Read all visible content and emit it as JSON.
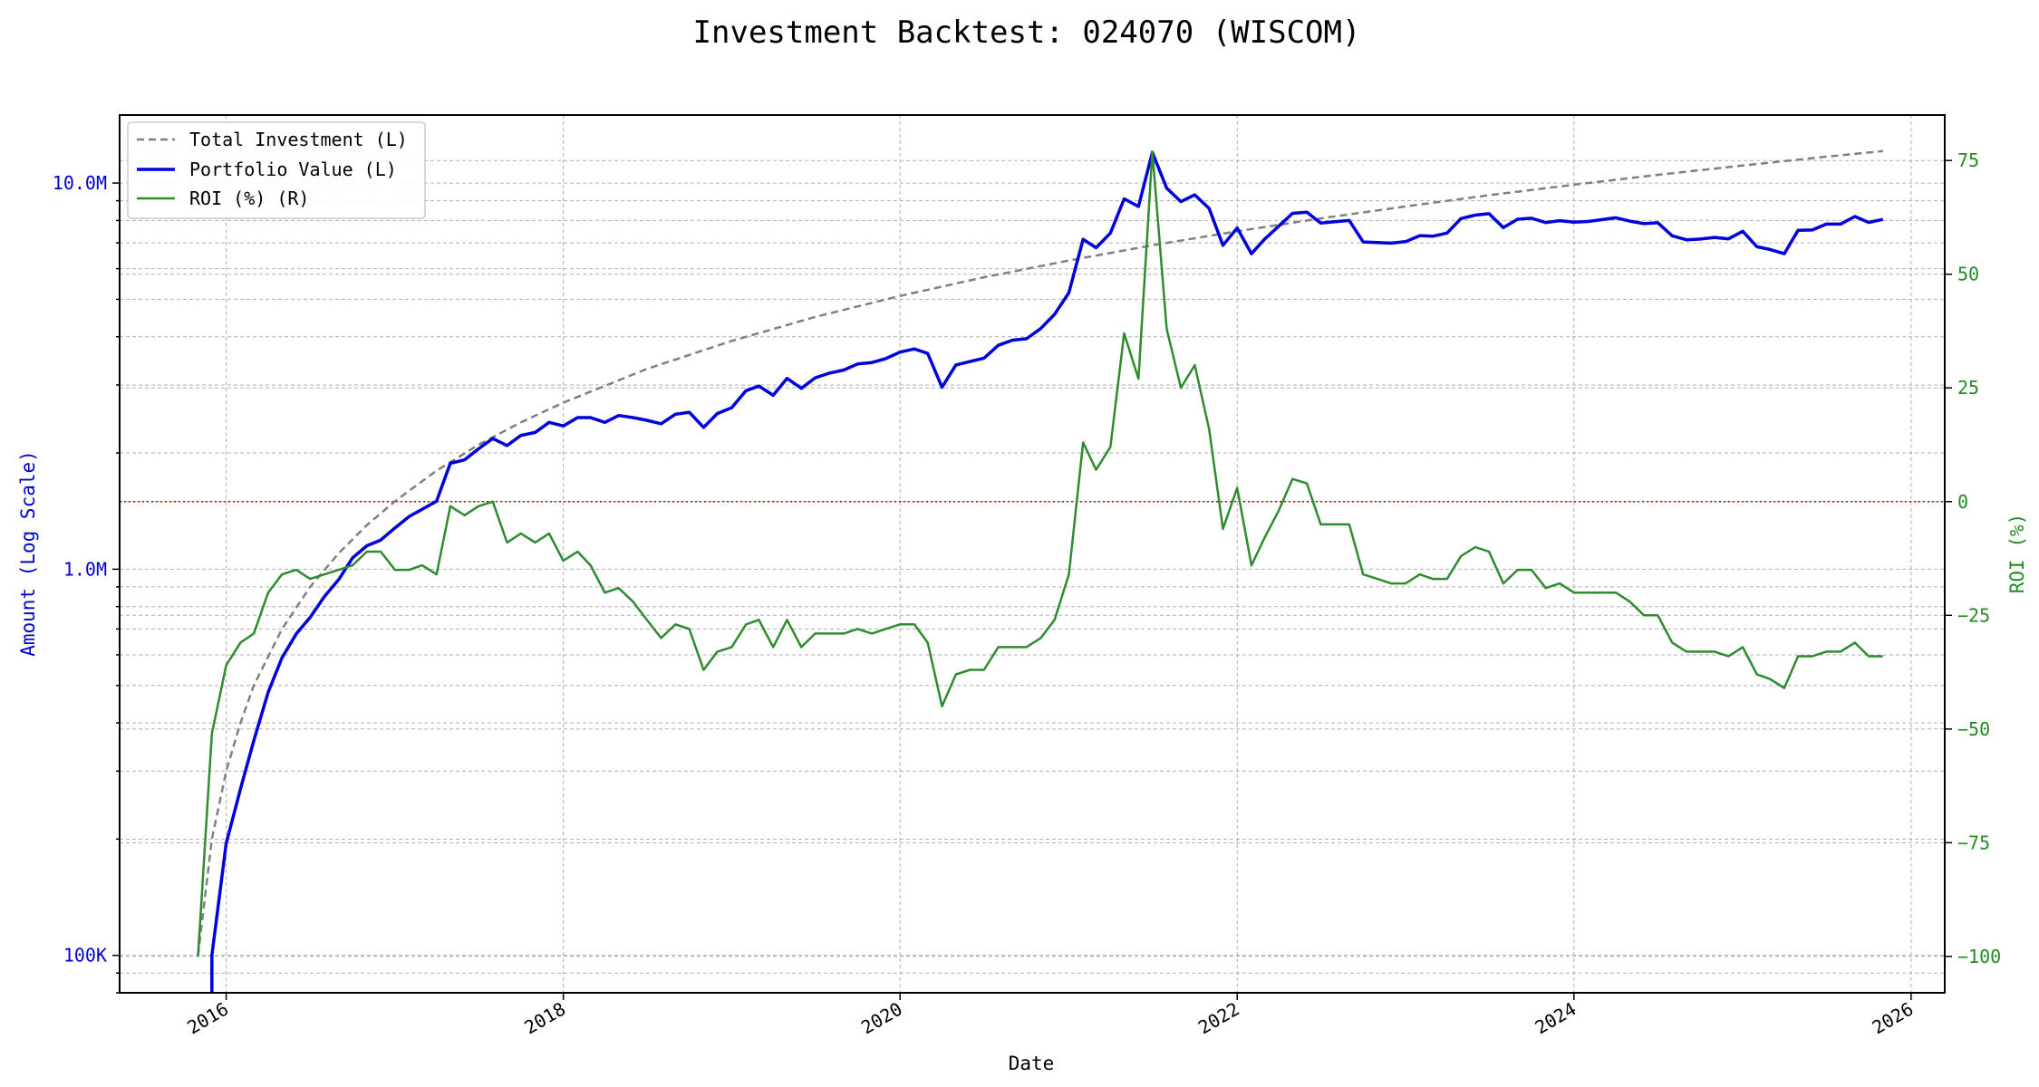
{
  "chart_data": {
    "type": "line",
    "title": "Investment Backtest: 024070 (WISCOM)",
    "xlabel": "Date",
    "ylabel_left": "Amount (Log Scale)",
    "ylabel_right": "ROI (%)",
    "y_scale_left": "log",
    "ylim_left": [
      80000,
      15000000
    ],
    "ylim_right": [
      -108,
      85
    ],
    "xlim": [
      "2015-05-15",
      "2026-03-15"
    ],
    "grid": true,
    "legend_position": "top-left",
    "x_ticks": [
      {
        "date": "2016-01-01",
        "label": "2016"
      },
      {
        "date": "2018-01-01",
        "label": "2018"
      },
      {
        "date": "2020-01-01",
        "label": "2020"
      },
      {
        "date": "2022-01-01",
        "label": "2022"
      },
      {
        "date": "2024-01-01",
        "label": "2024"
      },
      {
        "date": "2026-01-01",
        "label": "2026"
      }
    ],
    "y_ticks_left": [
      {
        "value": 100000,
        "label": "100K"
      },
      {
        "value": 1000000,
        "label": "1.0M"
      },
      {
        "value": 10000000,
        "label": "10.0M"
      }
    ],
    "y_ticks_right": [
      {
        "value": 75,
        "label": "75"
      },
      {
        "value": 50,
        "label": "50"
      },
      {
        "value": 25,
        "label": "25"
      },
      {
        "value": 0,
        "label": "0"
      },
      {
        "value": -25,
        "label": "−25"
      },
      {
        "value": -50,
        "label": "−50"
      },
      {
        "value": -75,
        "label": "−75"
      },
      {
        "value": -100,
        "label": "−100"
      }
    ],
    "zero_line": {
      "value": 0,
      "axis": "right",
      "color": "#cc0000",
      "style": "dotted"
    },
    "series": [
      {
        "name": "Total Investment (L)",
        "axis": "left",
        "color": "#808080",
        "style": "dashed",
        "x": [
          "2015-11-01",
          "2015-12-01",
          "2016-01-01",
          "2016-02-01",
          "2016-03-01",
          "2016-05-01",
          "2016-07-01",
          "2016-09-01",
          "2016-11-01",
          "2017-01-01",
          "2017-04-01",
          "2017-07-01",
          "2017-10-01",
          "2018-01-01",
          "2018-07-01",
          "2019-01-01",
          "2019-07-01",
          "2020-01-01",
          "2020-07-01",
          "2021-01-01",
          "2021-07-01",
          "2022-01-01",
          "2022-07-01",
          "2023-01-01",
          "2023-07-01",
          "2024-01-01",
          "2024-07-01",
          "2025-01-01",
          "2025-07-01",
          "2025-11-01"
        ],
        "values": [
          100000,
          200000,
          300000,
          400000,
          500000,
          700000,
          900000,
          1100000,
          1300000,
          1500000,
          1800000,
          2100000,
          2400000,
          2700000,
          3300000,
          3900000,
          4500000,
          5100000,
          5700000,
          6300000,
          6900000,
          7500000,
          8100000,
          8700000,
          9300000,
          9900000,
          10500000,
          11100000,
          11700000,
          12100000
        ]
      },
      {
        "name": "Portfolio Value (L)",
        "axis": "left",
        "color": "#0000dd",
        "style": "solid",
        "x": [
          "2015-12-01",
          "2015-12-01",
          "2016-01-01",
          "2016-02-01",
          "2016-03-01",
          "2016-04-01",
          "2016-05-01",
          "2016-06-01",
          "2016-07-01",
          "2016-08-01",
          "2016-09-01",
          "2016-10-01",
          "2016-11-01",
          "2016-12-01",
          "2017-01-01",
          "2017-02-01",
          "2017-03-01",
          "2017-04-01",
          "2017-05-01",
          "2017-06-01",
          "2017-07-01",
          "2017-08-01",
          "2017-09-01",
          "2017-10-01",
          "2017-11-01",
          "2017-12-01",
          "2018-01-01",
          "2018-02-01",
          "2018-03-01",
          "2018-04-01",
          "2018-05-01",
          "2018-06-01",
          "2018-07-01",
          "2018-08-01",
          "2018-09-01",
          "2018-10-01",
          "2018-11-01",
          "2018-12-01",
          "2019-01-01",
          "2019-02-01",
          "2019-03-01",
          "2019-04-01",
          "2019-05-01",
          "2019-06-01",
          "2019-07-01",
          "2019-08-01",
          "2019-09-01",
          "2019-10-01",
          "2019-11-01",
          "2019-12-01",
          "2020-01-01",
          "2020-02-01",
          "2020-03-01",
          "2020-04-01",
          "2020-05-01",
          "2020-06-01",
          "2020-07-01",
          "2020-08-01",
          "2020-09-01",
          "2020-10-01",
          "2020-11-01",
          "2020-12-01",
          "2021-01-01",
          "2021-02-01",
          "2021-03-01",
          "2021-04-01",
          "2021-05-01",
          "2021-06-01",
          "2021-07-01",
          "2021-08-01",
          "2021-09-01",
          "2021-10-01",
          "2021-11-01",
          "2021-12-01",
          "2022-01-01",
          "2022-02-01",
          "2022-03-01",
          "2022-04-01",
          "2022-05-01",
          "2022-06-01",
          "2022-07-01",
          "2022-08-01",
          "2022-09-01",
          "2022-10-01",
          "2022-11-01",
          "2022-12-01",
          "2023-01-01",
          "2023-02-01",
          "2023-03-01",
          "2023-04-01",
          "2023-05-01",
          "2023-06-01",
          "2023-07-01",
          "2023-08-01",
          "2023-09-01",
          "2023-10-01",
          "2023-11-01",
          "2023-12-01",
          "2024-01-01",
          "2024-02-01",
          "2024-03-01",
          "2024-04-01",
          "2024-05-01",
          "2024-06-01",
          "2024-07-01",
          "2024-08-01",
          "2024-09-01",
          "2024-10-01",
          "2024-11-01",
          "2024-12-01",
          "2025-01-01",
          "2025-02-01",
          "2025-03-01",
          "2025-04-01",
          "2025-05-01",
          "2025-06-01",
          "2025-07-01",
          "2025-08-01",
          "2025-09-01",
          "2025-10-01",
          "2025-11-01"
        ],
        "values": [
          80000,
          100000,
          195000,
          270000,
          360000,
          480000,
          590000,
          680000,
          750000,
          850000,
          940000,
          1070000,
          1150000,
          1190000,
          1280000,
          1370000,
          1430000,
          1500000,
          1880000,
          1920000,
          2050000,
          2180000,
          2090000,
          2220000,
          2260000,
          2400000,
          2350000,
          2470000,
          2470000,
          2400000,
          2500000,
          2470000,
          2430000,
          2380000,
          2520000,
          2550000,
          2330000,
          2530000,
          2620000,
          2900000,
          2980000,
          2820000,
          3120000,
          2940000,
          3130000,
          3220000,
          3280000,
          3400000,
          3430000,
          3510000,
          3650000,
          3720000,
          3620000,
          2960000,
          3380000,
          3450000,
          3520000,
          3800000,
          3920000,
          3950000,
          4200000,
          4570000,
          5200000,
          7150000,
          6800000,
          7420000,
          9100000,
          8700000,
          12000000,
          9700000,
          8950000,
          9320000,
          8600000,
          6900000,
          7650000,
          6560000,
          7150000,
          7730000,
          8350000,
          8400000,
          7880000,
          7940000,
          8000000,
          7040000,
          7010000,
          6990000,
          7050000,
          7310000,
          7280000,
          7420000,
          8090000,
          8260000,
          8330000,
          7670000,
          8060000,
          8110000,
          7900000,
          7990000,
          7920000,
          7950000,
          8040000,
          8130000,
          7970000,
          7850000,
          7890000,
          7300000,
          7130000,
          7160000,
          7230000,
          7170000,
          7500000,
          6840000,
          6730000,
          6560000,
          7540000,
          7560000,
          7830000,
          7830000,
          8190000,
          7910000,
          8050000
        ]
      },
      {
        "name": "ROI (%) (R)",
        "axis": "right",
        "color": "#2e8b2e",
        "style": "solid",
        "x": [
          "2015-11-01",
          "2015-12-01",
          "2016-01-01",
          "2016-02-01",
          "2016-03-01",
          "2016-04-01",
          "2016-05-01",
          "2016-06-01",
          "2016-07-01",
          "2016-08-01",
          "2016-09-01",
          "2016-10-01",
          "2016-11-01",
          "2016-12-01",
          "2017-01-01",
          "2017-02-01",
          "2017-03-01",
          "2017-04-01",
          "2017-05-01",
          "2017-06-01",
          "2017-07-01",
          "2017-08-01",
          "2017-09-01",
          "2017-10-01",
          "2017-11-01",
          "2017-12-01",
          "2018-01-01",
          "2018-02-01",
          "2018-03-01",
          "2018-04-01",
          "2018-05-01",
          "2018-06-01",
          "2018-07-01",
          "2018-08-01",
          "2018-09-01",
          "2018-10-01",
          "2018-11-01",
          "2018-12-01",
          "2019-01-01",
          "2019-02-01",
          "2019-03-01",
          "2019-04-01",
          "2019-05-01",
          "2019-06-01",
          "2019-07-01",
          "2019-08-01",
          "2019-09-01",
          "2019-10-01",
          "2019-11-01",
          "2019-12-01",
          "2020-01-01",
          "2020-02-01",
          "2020-03-01",
          "2020-04-01",
          "2020-05-01",
          "2020-06-01",
          "2020-07-01",
          "2020-08-01",
          "2020-09-01",
          "2020-10-01",
          "2020-11-01",
          "2020-12-01",
          "2021-01-01",
          "2021-02-01",
          "2021-03-01",
          "2021-04-01",
          "2021-05-01",
          "2021-06-01",
          "2021-07-01",
          "2021-08-01",
          "2021-09-01",
          "2021-10-01",
          "2021-11-01",
          "2021-12-01",
          "2022-01-01",
          "2022-02-01",
          "2022-03-01",
          "2022-04-01",
          "2022-05-01",
          "2022-06-01",
          "2022-07-01",
          "2022-08-01",
          "2022-09-01",
          "2022-10-01",
          "2022-11-01",
          "2022-12-01",
          "2023-01-01",
          "2023-02-01",
          "2023-03-01",
          "2023-04-01",
          "2023-05-01",
          "2023-06-01",
          "2023-07-01",
          "2023-08-01",
          "2023-09-01",
          "2023-10-01",
          "2023-11-01",
          "2023-12-01",
          "2024-01-01",
          "2024-02-01",
          "2024-03-01",
          "2024-04-01",
          "2024-05-01",
          "2024-06-01",
          "2024-07-01",
          "2024-08-01",
          "2024-09-01",
          "2024-10-01",
          "2024-11-01",
          "2024-12-01",
          "2025-01-01",
          "2025-02-01",
          "2025-03-01",
          "2025-04-01",
          "2025-05-01",
          "2025-06-01",
          "2025-07-01",
          "2025-08-01",
          "2025-09-01",
          "2025-10-01",
          "2025-11-01"
        ],
        "values": [
          -100,
          -51,
          -36,
          -31,
          -29,
          -20,
          -16,
          -15,
          -17,
          -16,
          -15,
          -14,
          -11,
          -11,
          -15,
          -15,
          -14,
          -16,
          -1,
          -3,
          -1,
          0,
          -9,
          -7,
          -9,
          -7,
          -13,
          -11,
          -14,
          -20,
          -19,
          -22,
          -26,
          -30,
          -27,
          -28,
          -37,
          -33,
          -32,
          -27,
          -26,
          -32,
          -26,
          -32,
          -29,
          -29,
          -29,
          -28,
          -29,
          -28,
          -27,
          -27,
          -31,
          -45,
          -38,
          -37,
          -37,
          -32,
          -32,
          -32,
          -30,
          -26,
          -16,
          13,
          7,
          12,
          37,
          27,
          77,
          38,
          25,
          30,
          16,
          -6,
          3,
          -14,
          -8,
          -2,
          5,
          4,
          -5,
          -5,
          -5,
          -16,
          -17,
          -18,
          -18,
          -16,
          -17,
          -17,
          -12,
          -10,
          -11,
          -18,
          -15,
          -15,
          -19,
          -18,
          -20,
          -20,
          -20,
          -20,
          -22,
          -25,
          -25,
          -31,
          -33,
          -33,
          -33,
          -34,
          -32,
          -38,
          -39,
          -41,
          -34,
          -34,
          -33,
          -33,
          -31,
          -34,
          -34
        ]
      }
    ]
  }
}
